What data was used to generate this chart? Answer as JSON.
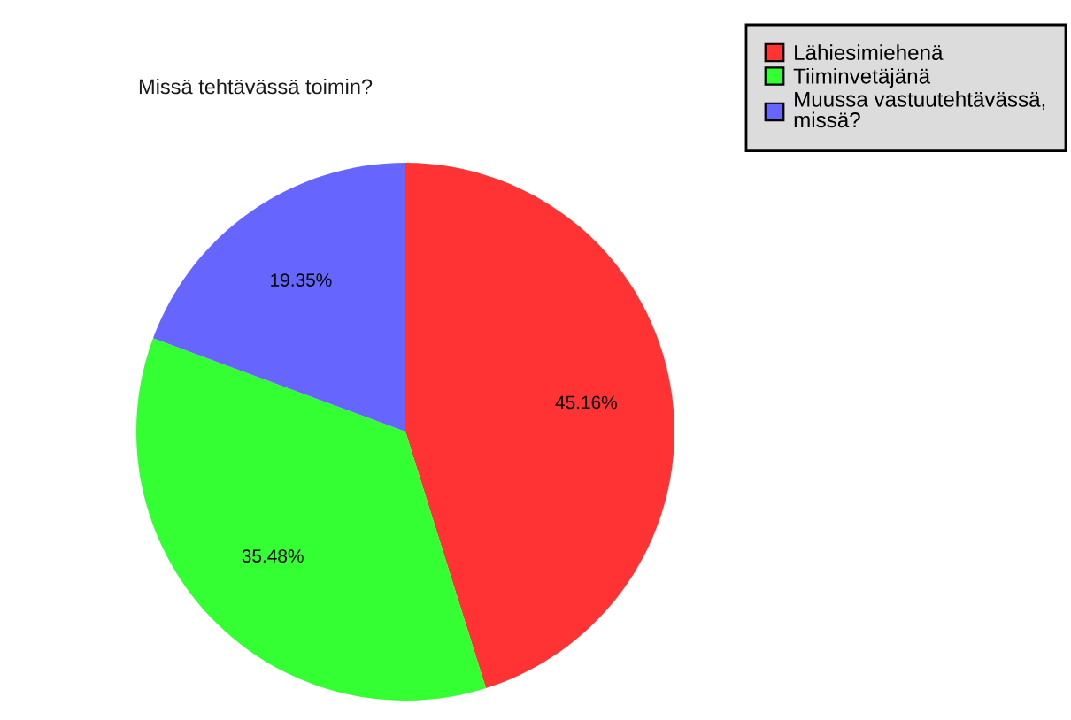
{
  "chart_data": {
    "type": "pie",
    "title": "Missä tehtävässä toimin?",
    "categories": [
      "Lähiesimiehenä",
      "Tiiminvetäjänä",
      "Muussa vastuutehtävässä, missä?"
    ],
    "values": [
      45.16,
      35.48,
      19.35
    ],
    "colors": [
      "#ff3333",
      "#33ff33",
      "#6666ff"
    ],
    "value_labels": [
      "45.16%",
      "35.48%",
      "19.35%"
    ],
    "legend": "top right"
  }
}
